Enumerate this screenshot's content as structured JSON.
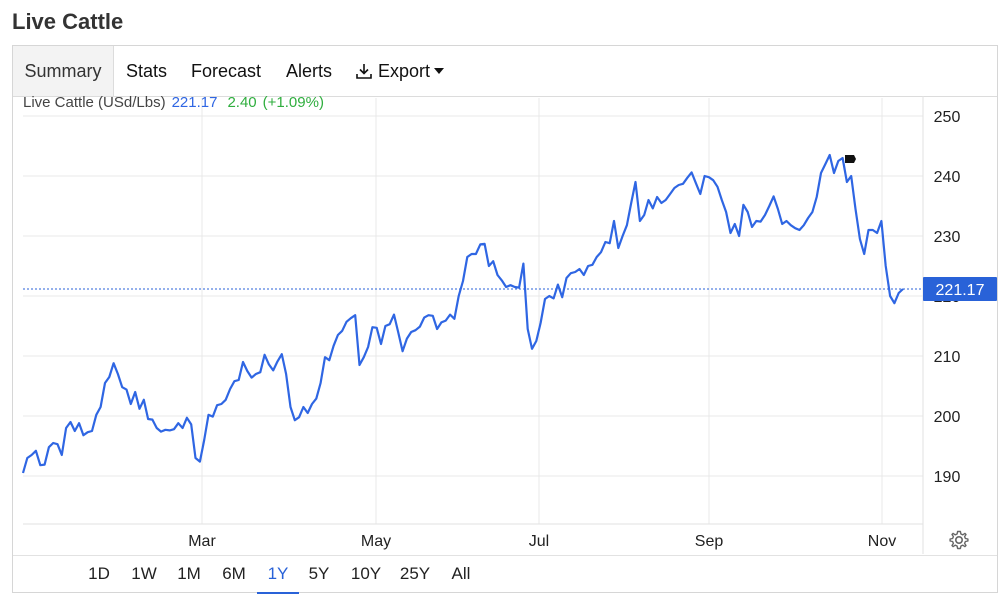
{
  "page": {
    "title": "Live Cattle"
  },
  "tabs": [
    {
      "label": "Summary",
      "active": true
    },
    {
      "label": "Stats",
      "active": false
    },
    {
      "label": "Forecast",
      "active": false
    },
    {
      "label": "Alerts",
      "active": false
    },
    {
      "label": "Export",
      "active": false,
      "icon": "download-icon"
    }
  ],
  "quote": {
    "name": "Live Cattle (USd/Lbs)",
    "price": "221.17",
    "change": "2.40",
    "change_pct": "(+1.09%)"
  },
  "ranges": [
    {
      "label": "1D",
      "active": false
    },
    {
      "label": "1W",
      "active": false
    },
    {
      "label": "1M",
      "active": false
    },
    {
      "label": "6M",
      "active": false
    },
    {
      "label": "1Y",
      "active": true
    },
    {
      "label": "5Y",
      "active": false
    },
    {
      "label": "10Y",
      "active": false
    },
    {
      "label": "25Y",
      "active": false
    },
    {
      "label": "All",
      "active": false
    }
  ],
  "colors": {
    "line": "#2f66e3",
    "price_tag": "#2962d8",
    "change_up": "#2fae3e",
    "grid": "#e9e9e9"
  },
  "chart_data": {
    "type": "line",
    "ylim": [
      182,
      253
    ],
    "yticks": [
      190,
      200,
      210,
      220,
      230,
      240,
      250
    ],
    "xticks": [
      "Mar",
      "May",
      "Jul",
      "Sep",
      "Nov"
    ],
    "current_value": 221.17,
    "current_label": "221.17",
    "grid": true,
    "series": [
      {
        "values": [
          190.5,
          193.0,
          193.5,
          194.2,
          191.8,
          191.9,
          194.8,
          195.5,
          195.3,
          193.5,
          198.0,
          199.0,
          197.5,
          198.8,
          196.8,
          197.3,
          197.5,
          200.2,
          201.5,
          205.5,
          206.5,
          208.8,
          207.0,
          204.8,
          204.4,
          202.0,
          204.0,
          201.2,
          202.7,
          199.5,
          199.4,
          198.0,
          197.4,
          197.7,
          197.6,
          197.8,
          198.8,
          198.0,
          199.7,
          198.6,
          193.0,
          192.4,
          196.0,
          200.2,
          199.9,
          201.8,
          202.0,
          202.7,
          204.5,
          205.8,
          206.0,
          209.0,
          207.5,
          206.4,
          207.0,
          207.3,
          210.2,
          208.6,
          207.6,
          209.1,
          210.3,
          207.0,
          201.5,
          199.3,
          199.8,
          201.5,
          200.5,
          202.0,
          202.9,
          205.5,
          209.8,
          209.3,
          211.7,
          213.5,
          214.2,
          215.7,
          216.3,
          216.8,
          208.5,
          209.8,
          211.5,
          214.8,
          214.7,
          212.0,
          215.0,
          215.3,
          216.9,
          213.9,
          210.8,
          212.9,
          214.0,
          214.3,
          214.9,
          216.4,
          216.8,
          216.7,
          214.5,
          215.6,
          215.9,
          216.9,
          216.2,
          220.0,
          222.5,
          226.5,
          227.0,
          227.0,
          228.6,
          228.7,
          225.0,
          225.8,
          223.5,
          222.6,
          221.5,
          221.8,
          221.5,
          221.4,
          225.4,
          214.5,
          211.2,
          212.5,
          215.5,
          219.5,
          220.0,
          219.6,
          221.9,
          219.8,
          223.0,
          223.8,
          224.0,
          224.5,
          223.5,
          225.0,
          225.2,
          226.5,
          227.3,
          229.0,
          228.8,
          232.5,
          228.0,
          230.0,
          231.8,
          235.5,
          239.0,
          232.5,
          233.5,
          236.0,
          234.6,
          236.5,
          235.5,
          236.0,
          237.0,
          238.0,
          238.5,
          238.7,
          239.7,
          240.6,
          238.8,
          237.0,
          240.0,
          239.8,
          239.3,
          238.2,
          236.0,
          234.0,
          230.5,
          232.0,
          230.0,
          235.2,
          234.0,
          231.5,
          232.5,
          232.4,
          233.5,
          235.0,
          236.6,
          234.5,
          232.0,
          232.5,
          231.8,
          231.3,
          231.0,
          231.8,
          233.0,
          234.0,
          236.5,
          240.5,
          242.0,
          243.5,
          240.5,
          242.5,
          243.0,
          239.0,
          240.0,
          234.5,
          229.5,
          227.0,
          231.0,
          231.0,
          230.5,
          232.5,
          225.0,
          220.0,
          218.8,
          220.5,
          221.17
        ]
      }
    ]
  }
}
